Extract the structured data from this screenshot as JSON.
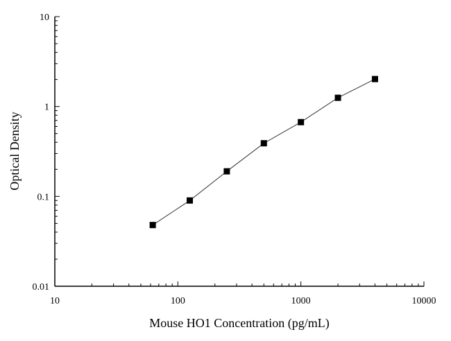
{
  "chart_data": {
    "type": "line",
    "title": "",
    "xlabel": "Mouse HO1 Concentration (pg/mL)",
    "ylabel": "Optical Density",
    "xscale": "log",
    "yscale": "log",
    "xlim": [
      10,
      10000
    ],
    "ylim": [
      0.01,
      10
    ],
    "xticks": [
      "10",
      "100",
      "1000",
      "10000"
    ],
    "yticks": [
      "0.01",
      "0.1",
      "1",
      "10"
    ],
    "grid": false,
    "marker": "square",
    "color": "#000000",
    "series": [
      {
        "x": [
          62.5,
          125,
          250,
          500,
          1000,
          2000,
          4000
        ],
        "y": [
          0.048,
          0.09,
          0.19,
          0.39,
          0.67,
          1.25,
          2.02
        ]
      }
    ]
  }
}
